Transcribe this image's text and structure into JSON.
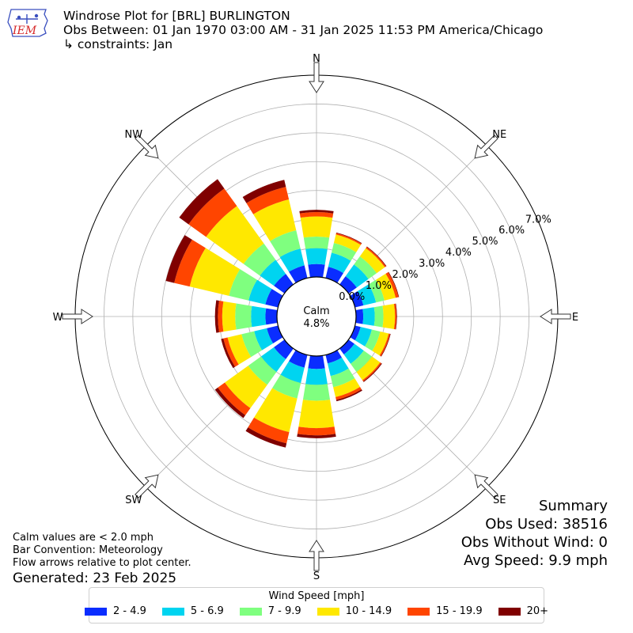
{
  "title": {
    "line1": "Windrose Plot for [BRL] BURLINGTON",
    "line2": "Obs Between: 01 Jan 1970 03:00 AM - 31 Jan 2025 11:53 PM America/Chicago",
    "line3": "↳ constraints: Jan"
  },
  "logo": {
    "text": "IEM",
    "icon": "iowa-state-outline-icon",
    "color": "#d62728"
  },
  "summary": {
    "heading": "Summary",
    "obs_used": "Obs Used: 38516",
    "obs_without_wind": "Obs Without Wind: 0",
    "avg_speed": "Avg Speed: 9.9 mph"
  },
  "notes": {
    "calm_note": "Calm values are < 2.0 mph",
    "bar_convention": "Bar Convention: Meteorology",
    "flow_arrows": "Flow arrows relative to plot center.",
    "generated": "Generated: 23 Feb 2025"
  },
  "calm": {
    "label": "Calm",
    "value": "4.8%"
  },
  "chart_data": {
    "type": "windrose",
    "directions": [
      "N",
      "NNE",
      "NE",
      "ENE",
      "E",
      "ESE",
      "SE",
      "SSE",
      "S",
      "SSW",
      "SW",
      "WSW",
      "W",
      "WNW",
      "NW",
      "NNW"
    ],
    "direction_labels": [
      "N",
      "NE",
      "E",
      "SE",
      "S",
      "SW",
      "W",
      "NW"
    ],
    "radial_ticks": [
      "0.0%",
      "1.0%",
      "2.0%",
      "3.0%",
      "4.0%",
      "5.0%",
      "6.0%",
      "7.0%"
    ],
    "radial_max": 7.0,
    "legend_title": "Wind Speed [mph]",
    "series": [
      {
        "name": "2 - 4.9",
        "color": "#0a2dff",
        "values": [
          0.45,
          0.4,
          0.35,
          0.3,
          0.25,
          0.2,
          0.25,
          0.3,
          0.45,
          0.45,
          0.45,
          0.4,
          0.4,
          0.45,
          0.45,
          0.45
        ]
      },
      {
        "name": "5 - 6.9",
        "color": "#00d4f0",
        "values": [
          0.55,
          0.5,
          0.5,
          0.45,
          0.4,
          0.4,
          0.4,
          0.45,
          0.55,
          0.55,
          0.55,
          0.45,
          0.5,
          0.6,
          0.6,
          0.6
        ]
      },
      {
        "name": "7 - 9.9",
        "color": "#7fff7f",
        "values": [
          0.4,
          0.35,
          0.35,
          0.3,
          0.3,
          0.3,
          0.35,
          0.4,
          0.55,
          0.55,
          0.55,
          0.45,
          0.55,
          0.7,
          0.7,
          0.65
        ]
      },
      {
        "name": "10 - 14.9",
        "color": "#ffe800",
        "values": [
          0.7,
          0.3,
          0.35,
          0.4,
          0.4,
          0.3,
          0.35,
          0.35,
          0.95,
          1.2,
          1.0,
          0.5,
          0.45,
          1.4,
          1.6,
          1.1
        ]
      },
      {
        "name": "15 - 19.9",
        "color": "#ff4500",
        "values": [
          0.15,
          0.05,
          0.05,
          0.1,
          0.05,
          0.05,
          0.05,
          0.1,
          0.25,
          0.4,
          0.3,
          0.15,
          0.15,
          0.55,
          0.75,
          0.45
        ]
      },
      {
        "name": "20+",
        "color": "#800000",
        "values": [
          0.08,
          0.02,
          0.02,
          0.02,
          0.02,
          0.02,
          0.03,
          0.05,
          0.1,
          0.15,
          0.12,
          0.08,
          0.1,
          0.3,
          0.4,
          0.25
        ]
      }
    ]
  }
}
